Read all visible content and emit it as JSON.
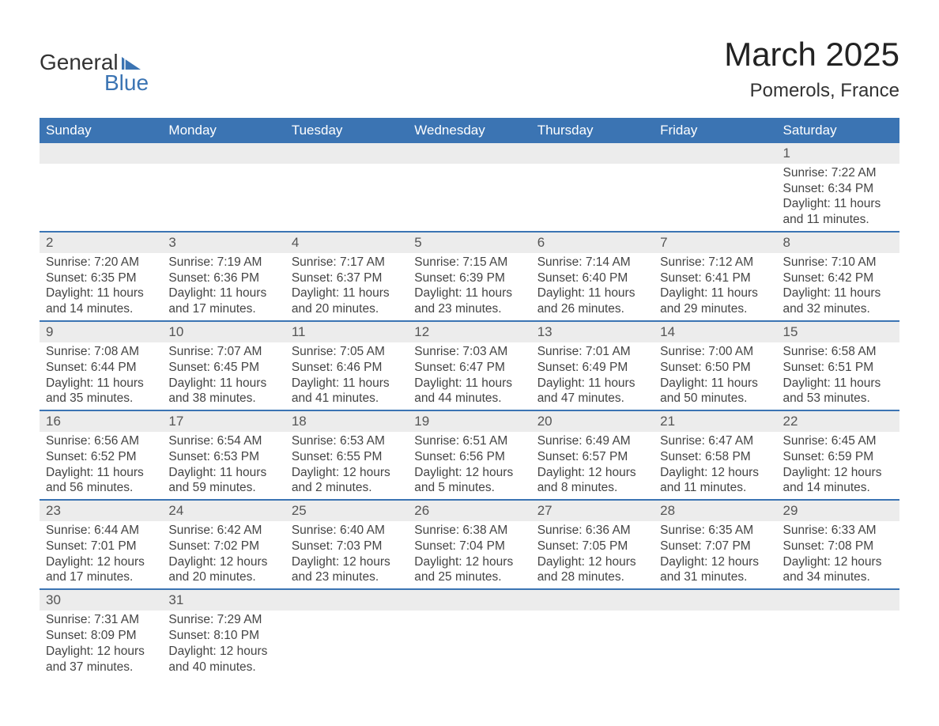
{
  "brand": {
    "word1": "General",
    "word2": "Blue",
    "logo_color": "#3b74b3"
  },
  "title": "March 2025",
  "location": "Pomerols, France",
  "colors": {
    "header_bg": "#3b74b3",
    "header_text": "#ffffff",
    "row_divider": "#3b74b3",
    "daynum_bg": "#ececec",
    "body_text": "#444444"
  },
  "weekdays": [
    "Sunday",
    "Monday",
    "Tuesday",
    "Wednesday",
    "Thursday",
    "Friday",
    "Saturday"
  ],
  "weeks": [
    {
      "nums": [
        "",
        "",
        "",
        "",
        "",
        "",
        "1"
      ],
      "cells": [
        "",
        "",
        "",
        "",
        "",
        "",
        "Sunrise: 7:22 AM\nSunset: 6:34 PM\nDaylight: 11 hours and 11 minutes."
      ]
    },
    {
      "nums": [
        "2",
        "3",
        "4",
        "5",
        "6",
        "7",
        "8"
      ],
      "cells": [
        "Sunrise: 7:20 AM\nSunset: 6:35 PM\nDaylight: 11 hours and 14 minutes.",
        "Sunrise: 7:19 AM\nSunset: 6:36 PM\nDaylight: 11 hours and 17 minutes.",
        "Sunrise: 7:17 AM\nSunset: 6:37 PM\nDaylight: 11 hours and 20 minutes.",
        "Sunrise: 7:15 AM\nSunset: 6:39 PM\nDaylight: 11 hours and 23 minutes.",
        "Sunrise: 7:14 AM\nSunset: 6:40 PM\nDaylight: 11 hours and 26 minutes.",
        "Sunrise: 7:12 AM\nSunset: 6:41 PM\nDaylight: 11 hours and 29 minutes.",
        "Sunrise: 7:10 AM\nSunset: 6:42 PM\nDaylight: 11 hours and 32 minutes."
      ]
    },
    {
      "nums": [
        "9",
        "10",
        "11",
        "12",
        "13",
        "14",
        "15"
      ],
      "cells": [
        "Sunrise: 7:08 AM\nSunset: 6:44 PM\nDaylight: 11 hours and 35 minutes.",
        "Sunrise: 7:07 AM\nSunset: 6:45 PM\nDaylight: 11 hours and 38 minutes.",
        "Sunrise: 7:05 AM\nSunset: 6:46 PM\nDaylight: 11 hours and 41 minutes.",
        "Sunrise: 7:03 AM\nSunset: 6:47 PM\nDaylight: 11 hours and 44 minutes.",
        "Sunrise: 7:01 AM\nSunset: 6:49 PM\nDaylight: 11 hours and 47 minutes.",
        "Sunrise: 7:00 AM\nSunset: 6:50 PM\nDaylight: 11 hours and 50 minutes.",
        "Sunrise: 6:58 AM\nSunset: 6:51 PM\nDaylight: 11 hours and 53 minutes."
      ]
    },
    {
      "nums": [
        "16",
        "17",
        "18",
        "19",
        "20",
        "21",
        "22"
      ],
      "cells": [
        "Sunrise: 6:56 AM\nSunset: 6:52 PM\nDaylight: 11 hours and 56 minutes.",
        "Sunrise: 6:54 AM\nSunset: 6:53 PM\nDaylight: 11 hours and 59 minutes.",
        "Sunrise: 6:53 AM\nSunset: 6:55 PM\nDaylight: 12 hours and 2 minutes.",
        "Sunrise: 6:51 AM\nSunset: 6:56 PM\nDaylight: 12 hours and 5 minutes.",
        "Sunrise: 6:49 AM\nSunset: 6:57 PM\nDaylight: 12 hours and 8 minutes.",
        "Sunrise: 6:47 AM\nSunset: 6:58 PM\nDaylight: 12 hours and 11 minutes.",
        "Sunrise: 6:45 AM\nSunset: 6:59 PM\nDaylight: 12 hours and 14 minutes."
      ]
    },
    {
      "nums": [
        "23",
        "24",
        "25",
        "26",
        "27",
        "28",
        "29"
      ],
      "cells": [
        "Sunrise: 6:44 AM\nSunset: 7:01 PM\nDaylight: 12 hours and 17 minutes.",
        "Sunrise: 6:42 AM\nSunset: 7:02 PM\nDaylight: 12 hours and 20 minutes.",
        "Sunrise: 6:40 AM\nSunset: 7:03 PM\nDaylight: 12 hours and 23 minutes.",
        "Sunrise: 6:38 AM\nSunset: 7:04 PM\nDaylight: 12 hours and 25 minutes.",
        "Sunrise: 6:36 AM\nSunset: 7:05 PM\nDaylight: 12 hours and 28 minutes.",
        "Sunrise: 6:35 AM\nSunset: 7:07 PM\nDaylight: 12 hours and 31 minutes.",
        "Sunrise: 6:33 AM\nSunset: 7:08 PM\nDaylight: 12 hours and 34 minutes."
      ]
    },
    {
      "nums": [
        "30",
        "31",
        "",
        "",
        "",
        "",
        ""
      ],
      "cells": [
        "Sunrise: 7:31 AM\nSunset: 8:09 PM\nDaylight: 12 hours and 37 minutes.",
        "Sunrise: 7:29 AM\nSunset: 8:10 PM\nDaylight: 12 hours and 40 minutes.",
        "",
        "",
        "",
        "",
        ""
      ]
    }
  ]
}
